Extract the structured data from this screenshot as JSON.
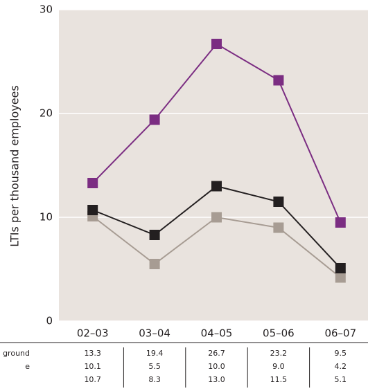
{
  "chart_data": {
    "type": "line",
    "y_label": "LTIs per thousand employees",
    "categories": [
      "02–03",
      "03–04",
      "04–05",
      "05–06",
      "06–07"
    ],
    "series": [
      {
        "name": "ground",
        "color": "#7b2d82",
        "values": [
          13.3,
          19.4,
          26.7,
          23.2,
          9.5
        ],
        "value_labels": [
          "13.3",
          "19.4",
          "26.7",
          "23.2",
          "9.5"
        ]
      },
      {
        "name": "e",
        "color": "#a79c93",
        "values": [
          10.1,
          5.5,
          10.0,
          9.0,
          4.2
        ],
        "value_labels": [
          "10.1",
          "5.5",
          "10.0",
          "9.0",
          "4.2"
        ]
      },
      {
        "color": "#231f20",
        "values": [
          10.7,
          8.3,
          13.0,
          11.5,
          5.1
        ],
        "value_labels": [
          "10.7",
          "8.3",
          "13.0",
          "11.5",
          "5.1"
        ]
      }
    ],
    "ylim": [
      0,
      30
    ],
    "yticks": [
      0,
      10,
      20,
      30
    ],
    "grid": true,
    "background": "#e9e3de"
  }
}
